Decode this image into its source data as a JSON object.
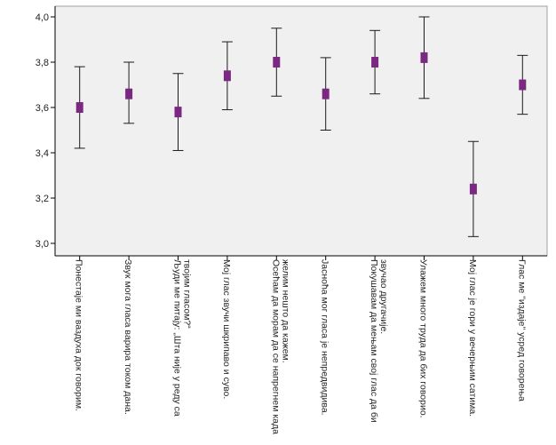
{
  "chart_data": {
    "type": "errorbar",
    "title": "",
    "xlabel": "",
    "ylabel": "",
    "ylim": [
      3.0,
      4.0
    ],
    "yticks": [
      "3,0",
      "3,2",
      "3,4",
      "3,6",
      "3,8",
      "4,0"
    ],
    "grid": false,
    "legend": "none",
    "categories": [
      [
        "Понестаје ми ваздуха док говорим."
      ],
      [
        "Звук мога гласа    варира током дана."
      ],
      [
        "Људи ме питају: „Шта није у реду са",
        "твојим гласом?“"
      ],
      [
        "Мој глас звучи шкрипаво и суво."
      ],
      [
        "Осећам да морам да се напрегнем када",
        "желим нешто да кажем."
      ],
      [
        "Јасноћа мог гласа је непредвидива."
      ],
      [
        "Покушавам да мењам свој глас да би",
        "звучао другачије."
      ],
      [
        "Улажем много труда да бих  говорио."
      ],
      [
        "Мој глас је гори у вечерњим сатима."
      ],
      [
        "Глас ме \"издаје\" усред  говорења"
      ]
    ],
    "means": [
      3.6,
      3.66,
      3.58,
      3.74,
      3.8,
      3.66,
      3.8,
      3.82,
      3.24,
      3.7
    ],
    "lower": [
      3.42,
      3.53,
      3.41,
      3.59,
      3.65,
      3.5,
      3.66,
      3.64,
      3.03,
      3.57
    ],
    "upper": [
      3.78,
      3.8,
      3.75,
      3.89,
      3.95,
      3.82,
      3.94,
      4.0,
      3.45,
      3.83
    ],
    "colors": {
      "marker": "#7b2882",
      "whisker": "#1a1a1a",
      "plot_bg": "#f0f0f0",
      "axis": "#000000"
    }
  }
}
